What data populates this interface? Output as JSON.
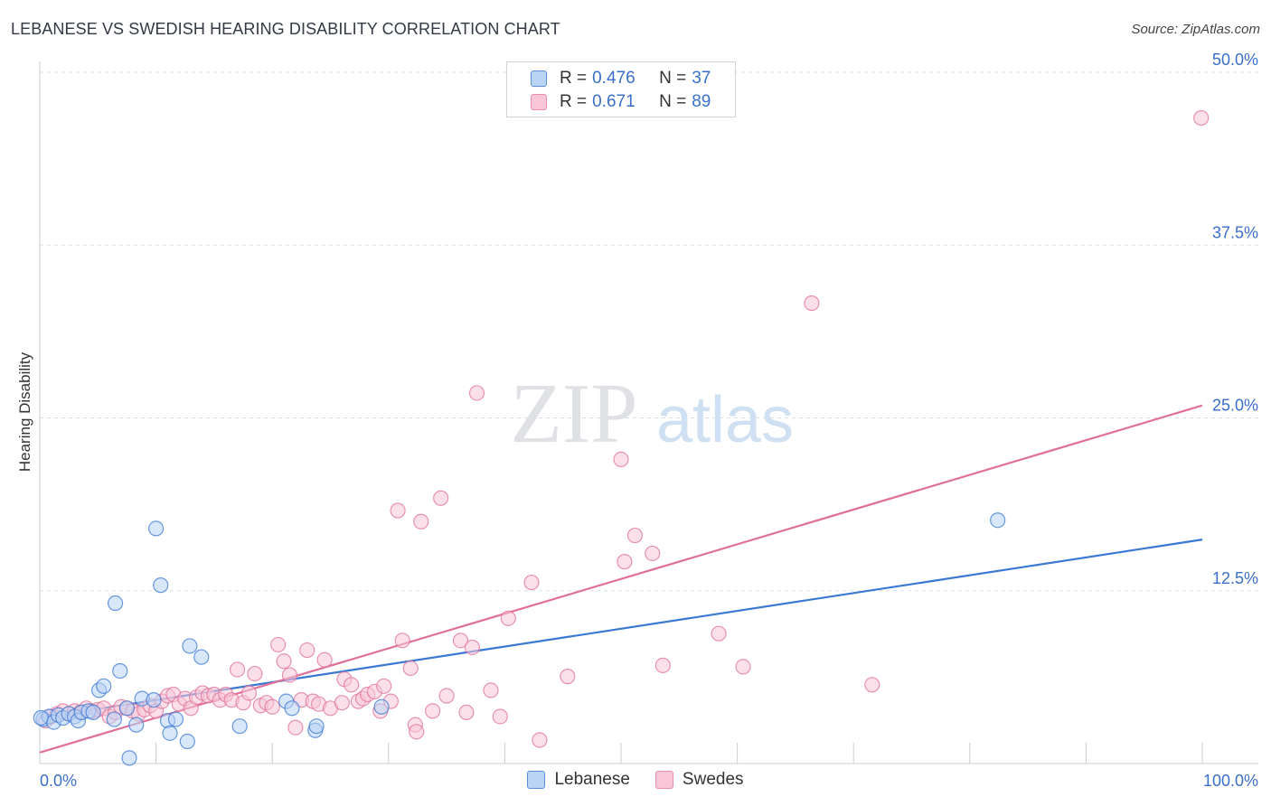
{
  "title": "LEBANESE VS SWEDISH HEARING DISABILITY CORRELATION CHART",
  "source": "Source: ZipAtlas.com",
  "watermark": {
    "zip": "ZIP",
    "atlas": "atlas"
  },
  "colors": {
    "blue": "#3a78d4",
    "blue_fill": "#b9d4f5",
    "pink": "#e07099",
    "pink_fill": "#f8c6d7",
    "grid": "#dcdfe5",
    "axis_text": "#3a6fc9"
  },
  "legend_top": [
    {
      "r_label": "R =",
      "r_value": "0.476",
      "n_label": "N =",
      "n_value": "37"
    },
    {
      "r_label": "R =",
      "r_value": "0.671",
      "n_label": "N =",
      "n_value": "89"
    }
  ],
  "chart_data": {
    "type": "scatter",
    "title": "LEBANESE VS SWEDISH HEARING DISABILITY CORRELATION CHART",
    "xlabel": "",
    "ylabel": "Hearing Disability",
    "xlim": [
      0,
      100
    ],
    "ylim": [
      0,
      50
    ],
    "x_tick_labels": [
      "0.0%",
      "100.0%"
    ],
    "y_ticks": [
      12.5,
      25.0,
      37.5,
      50.0
    ],
    "y_tick_labels": [
      "12.5%",
      "25.0%",
      "37.5%",
      "50.0%"
    ],
    "grid": true,
    "legend_position": "bottom",
    "series": [
      {
        "name": "Lebanese",
        "color": "#3a78d4",
        "fill": "#b9d4f5",
        "trend": {
          "x": [
            0,
            100
          ],
          "y": [
            3.3,
            16.2
          ]
        },
        "points": [
          [
            0.3,
            3.2
          ],
          [
            0.8,
            3.4
          ],
          [
            1.2,
            3.0
          ],
          [
            1.6,
            3.5
          ],
          [
            2.0,
            3.3
          ],
          [
            2.5,
            3.6
          ],
          [
            3.0,
            3.4
          ],
          [
            3.3,
            3.1
          ],
          [
            3.6,
            3.7
          ],
          [
            4.2,
            3.8
          ],
          [
            4.6,
            3.7
          ],
          [
            5.1,
            5.3
          ],
          [
            5.5,
            5.6
          ],
          [
            6.4,
            3.2
          ],
          [
            6.5,
            11.6
          ],
          [
            6.9,
            6.7
          ],
          [
            7.5,
            4.0
          ],
          [
            7.7,
            0.4
          ],
          [
            8.3,
            2.8
          ],
          [
            8.8,
            4.7
          ],
          [
            9.8,
            4.6
          ],
          [
            10.0,
            17.0
          ],
          [
            10.4,
            12.9
          ],
          [
            11.0,
            3.1
          ],
          [
            11.2,
            2.2
          ],
          [
            11.7,
            3.2
          ],
          [
            12.7,
            1.6
          ],
          [
            12.9,
            8.5
          ],
          [
            13.9,
            7.7
          ],
          [
            17.2,
            2.7
          ],
          [
            21.2,
            4.5
          ],
          [
            21.7,
            4.0
          ],
          [
            23.7,
            2.4
          ],
          [
            23.8,
            2.7
          ],
          [
            29.4,
            4.1
          ],
          [
            82.4,
            17.6
          ],
          [
            0.1,
            3.3
          ]
        ]
      },
      {
        "name": "Swedes",
        "color": "#e07099",
        "fill": "#f8c6d7",
        "trend": {
          "x": [
            0,
            100
          ],
          "y": [
            0.8,
            25.9
          ]
        },
        "points": [
          [
            0.5,
            3.1
          ],
          [
            1.0,
            3.4
          ],
          [
            1.5,
            3.6
          ],
          [
            2.0,
            3.8
          ],
          [
            2.5,
            3.6
          ],
          [
            3.0,
            3.8
          ],
          [
            3.5,
            3.7
          ],
          [
            4.0,
            4.0
          ],
          [
            4.5,
            3.8
          ],
          [
            5.0,
            3.9
          ],
          [
            5.5,
            4.0
          ],
          [
            6.0,
            3.4
          ],
          [
            6.5,
            3.7
          ],
          [
            7.0,
            4.1
          ],
          [
            7.5,
            4.0
          ],
          [
            8.0,
            3.8
          ],
          [
            8.5,
            3.6
          ],
          [
            9.0,
            3.9
          ],
          [
            9.5,
            4.2
          ],
          [
            10.0,
            3.8
          ],
          [
            10.5,
            4.5
          ],
          [
            11.0,
            4.9
          ],
          [
            11.5,
            5.0
          ],
          [
            12.0,
            4.3
          ],
          [
            12.5,
            4.7
          ],
          [
            13.0,
            4.0
          ],
          [
            13.5,
            4.8
          ],
          [
            14.0,
            5.1
          ],
          [
            14.5,
            4.9
          ],
          [
            15.0,
            5.0
          ],
          [
            15.5,
            4.6
          ],
          [
            16.0,
            5.0
          ],
          [
            16.5,
            4.6
          ],
          [
            17.0,
            6.8
          ],
          [
            17.5,
            4.4
          ],
          [
            18.0,
            5.1
          ],
          [
            18.5,
            6.5
          ],
          [
            19.0,
            4.2
          ],
          [
            19.5,
            4.4
          ],
          [
            20.0,
            4.1
          ],
          [
            20.5,
            8.6
          ],
          [
            21.0,
            7.4
          ],
          [
            21.5,
            6.4
          ],
          [
            22.0,
            2.6
          ],
          [
            22.5,
            4.6
          ],
          [
            23.0,
            8.2
          ],
          [
            23.5,
            4.5
          ],
          [
            24.0,
            4.3
          ],
          [
            24.5,
            7.5
          ],
          [
            25.0,
            4.0
          ],
          [
            26.0,
            4.4
          ],
          [
            26.2,
            6.1
          ],
          [
            26.8,
            5.7
          ],
          [
            27.4,
            4.5
          ],
          [
            27.8,
            4.7
          ],
          [
            28.2,
            5.0
          ],
          [
            28.8,
            5.2
          ],
          [
            29.3,
            3.8
          ],
          [
            29.6,
            5.6
          ],
          [
            30.2,
            4.5
          ],
          [
            30.8,
            18.3
          ],
          [
            31.2,
            8.9
          ],
          [
            31.9,
            6.9
          ],
          [
            32.3,
            2.8
          ],
          [
            32.4,
            2.3
          ],
          [
            32.8,
            17.5
          ],
          [
            33.8,
            3.8
          ],
          [
            34.5,
            19.2
          ],
          [
            35.0,
            4.9
          ],
          [
            36.2,
            8.9
          ],
          [
            36.7,
            3.7
          ],
          [
            37.2,
            8.4
          ],
          [
            37.6,
            26.8
          ],
          [
            38.8,
            5.3
          ],
          [
            39.6,
            3.4
          ],
          [
            40.3,
            10.5
          ],
          [
            42.3,
            13.1
          ],
          [
            43.0,
            1.7
          ],
          [
            45.4,
            6.3
          ],
          [
            50.0,
            22.0
          ],
          [
            50.3,
            14.6
          ],
          [
            51.2,
            16.5
          ],
          [
            52.7,
            15.2
          ],
          [
            53.6,
            7.1
          ],
          [
            58.4,
            9.4
          ],
          [
            60.5,
            7.0
          ],
          [
            66.4,
            33.3
          ],
          [
            71.6,
            5.7
          ],
          [
            99.9,
            46.7
          ]
        ]
      }
    ]
  }
}
